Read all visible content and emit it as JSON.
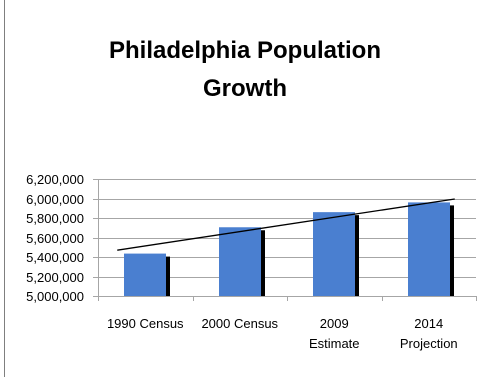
{
  "chart_data": {
    "type": "bar",
    "title_lines": [
      "Philadelphia Population",
      "Growth"
    ],
    "categories": [
      [
        "1990 Census"
      ],
      [
        "2000 Census"
      ],
      [
        "2009",
        "Estimate"
      ],
      [
        "2014",
        "Projection"
      ]
    ],
    "values": [
      5435000,
      5705000,
      5860000,
      5960000
    ],
    "trendline": {
      "start": 5470000,
      "end": 5995000
    },
    "ylim": [
      5000000,
      6200000
    ],
    "yticks": [
      5000000,
      5200000,
      5400000,
      5600000,
      5800000,
      6000000,
      6200000
    ],
    "ytick_labels": [
      "5,000,000",
      "5,200,000",
      "5,400,000",
      "5,600,000",
      "5,800,000",
      "6,000,000",
      "6,200,000"
    ],
    "grid": true,
    "colors": {
      "bar": "#4a7fd0",
      "bar_shadow": "#000000",
      "grid": "#a6a6a6",
      "trendline": "#000000",
      "border": "#7f7f7f"
    }
  }
}
